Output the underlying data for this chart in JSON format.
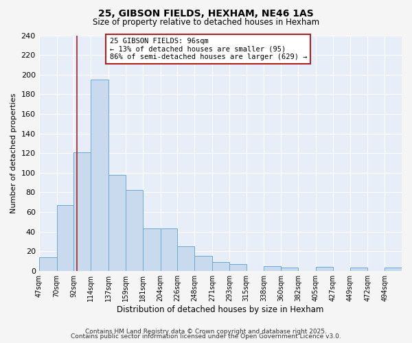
{
  "title": "25, GIBSON FIELDS, HEXHAM, NE46 1AS",
  "subtitle": "Size of property relative to detached houses in Hexham",
  "xlabel": "Distribution of detached houses by size in Hexham",
  "ylabel": "Number of detached properties",
  "bin_labels": [
    "47sqm",
    "70sqm",
    "92sqm",
    "114sqm",
    "137sqm",
    "159sqm",
    "181sqm",
    "204sqm",
    "226sqm",
    "248sqm",
    "271sqm",
    "293sqm",
    "315sqm",
    "338sqm",
    "360sqm",
    "382sqm",
    "405sqm",
    "427sqm",
    "449sqm",
    "472sqm",
    "494sqm"
  ],
  "bar_values": [
    14,
    67,
    121,
    195,
    98,
    82,
    43,
    43,
    25,
    15,
    9,
    7,
    0,
    5,
    3,
    0,
    4,
    0,
    3,
    0,
    3
  ],
  "bar_left_edges": [
    47,
    70,
    92,
    114,
    137,
    159,
    181,
    204,
    226,
    248,
    271,
    293,
    315,
    338,
    360,
    382,
    405,
    427,
    449,
    472,
    494
  ],
  "bar_color": "#c9d9ee",
  "bar_edge_color": "#6aaad4",
  "vline_x": 96,
  "vline_color": "#aa2222",
  "ylim": [
    0,
    240
  ],
  "yticks": [
    0,
    20,
    40,
    60,
    80,
    100,
    120,
    140,
    160,
    180,
    200,
    220,
    240
  ],
  "annotation_title": "25 GIBSON FIELDS: 96sqm",
  "annotation_line1": "← 13% of detached houses are smaller (95)",
  "annotation_line2": "86% of semi-detached houses are larger (629) →",
  "annotation_box_color": "#ffffff",
  "annotation_box_edge": "#aa2222",
  "footer1": "Contains HM Land Registry data © Crown copyright and database right 2025.",
  "footer2": "Contains public sector information licensed under the Open Government Licence v3.0.",
  "bg_color": "#e8eef8",
  "fig_bg_color": "#f5f5f5",
  "grid_color": "#ffffff"
}
